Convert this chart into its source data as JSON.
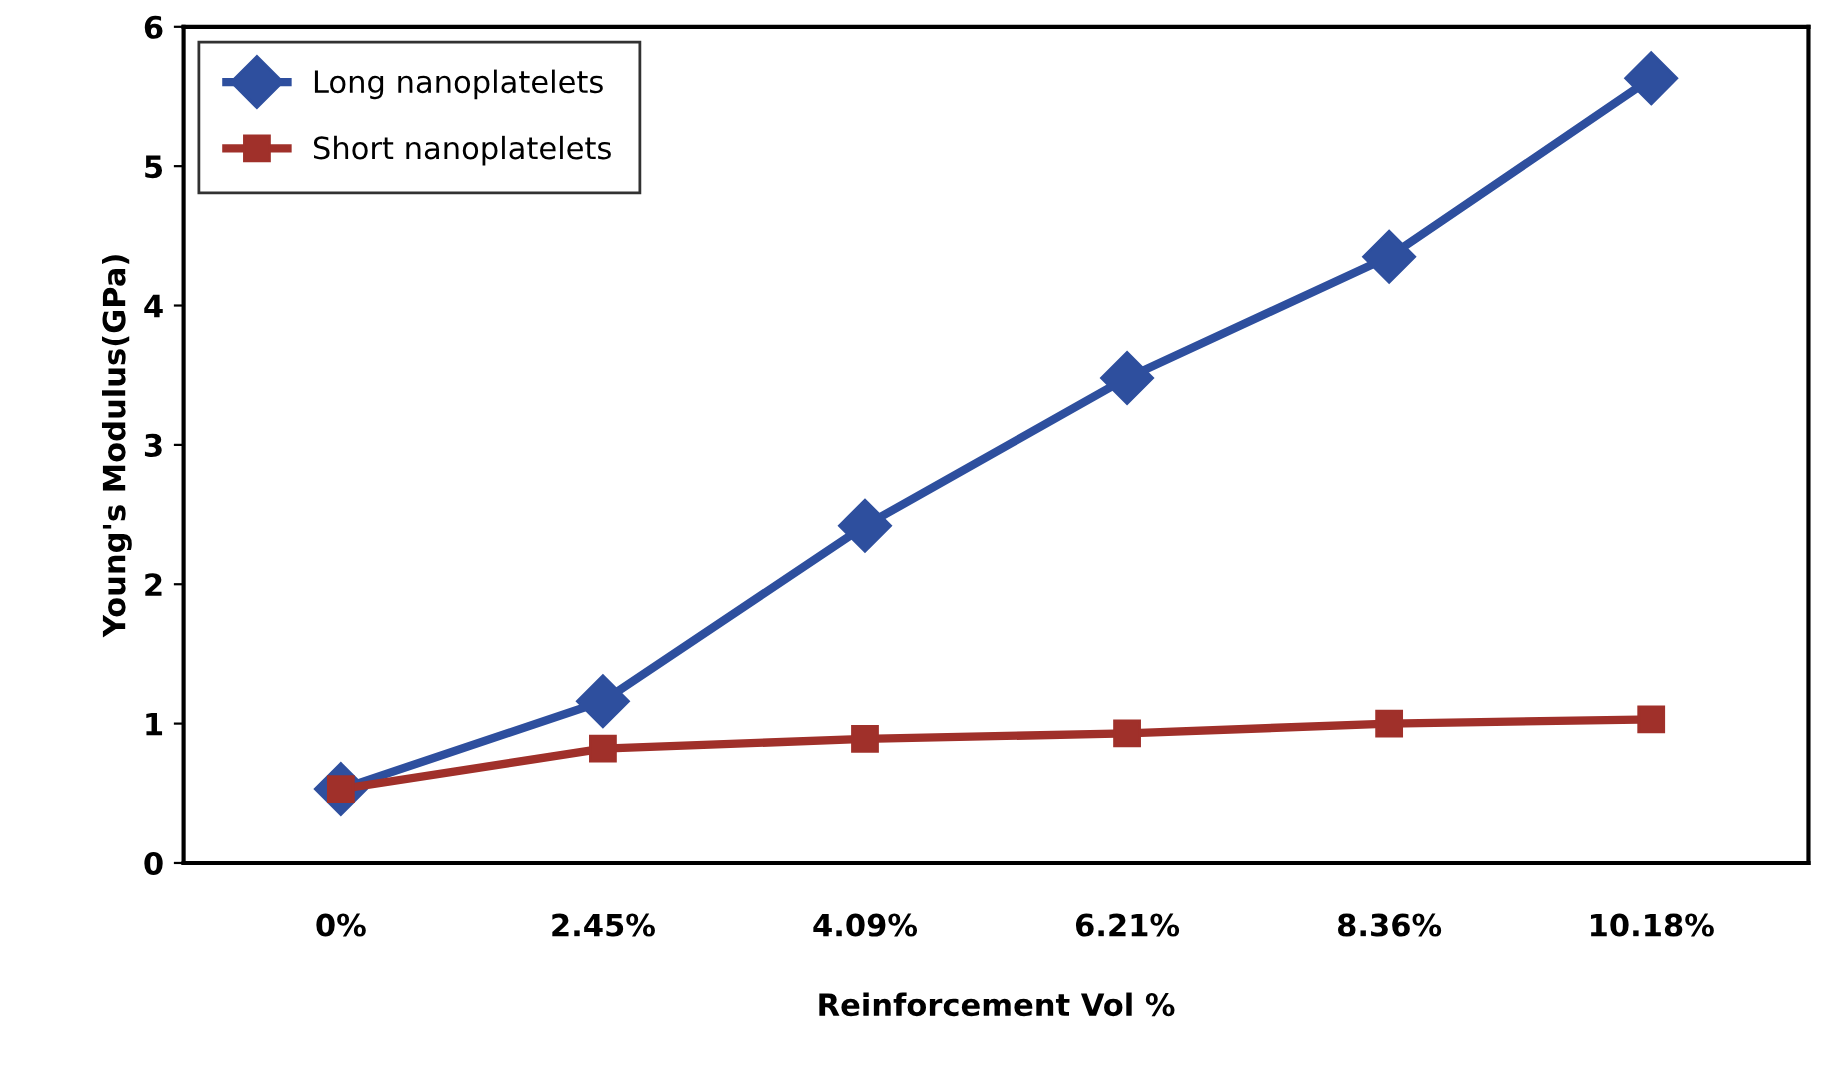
{
  "chart_data": {
    "type": "line",
    "xlabel": "Reinforcement Vol %",
    "ylabel": "Young's Modulus(GPa)",
    "categories": [
      "0%",
      "2.45%",
      "4.09%",
      "6.21%",
      "8.36%",
      "10.18%"
    ],
    "series": [
      {
        "name": "Long nanoplatelets",
        "color": "#2e4f9e",
        "marker": "diamond",
        "values": [
          0.53,
          1.16,
          2.42,
          3.48,
          4.35,
          5.63
        ]
      },
      {
        "name": "Short nanoplatelets",
        "color": "#a0302a",
        "marker": "square",
        "values": [
          0.53,
          0.82,
          0.89,
          0.93,
          1.0,
          1.03
        ]
      }
    ],
    "ylim": [
      0,
      6
    ],
    "yticks": [
      0,
      1,
      2,
      3,
      4,
      5,
      6
    ],
    "grid": false,
    "legend": "top left",
    "line_style": "solid"
  }
}
